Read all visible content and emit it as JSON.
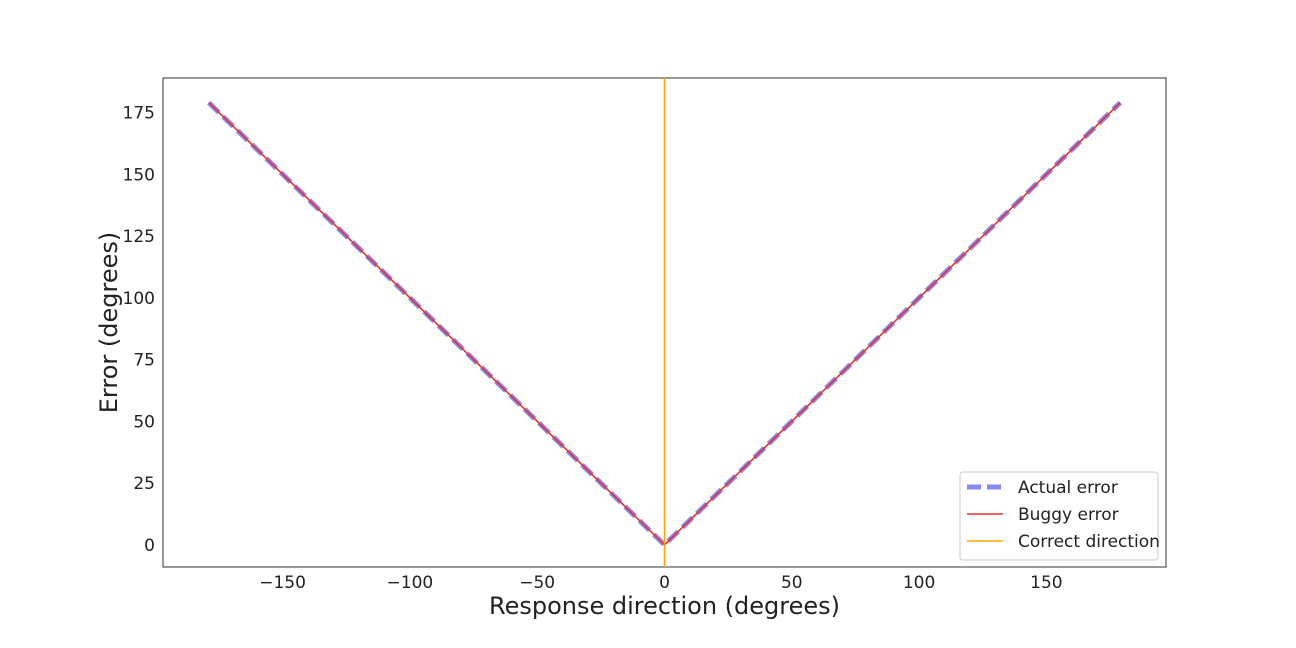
{
  "chart_data": {
    "type": "line",
    "title": "",
    "xlabel": "Response direction (degrees)",
    "ylabel": "Error (degrees)",
    "xlim": [
      -197,
      197
    ],
    "ylim": [
      -9,
      189
    ],
    "xticks": [
      -150,
      -100,
      -50,
      0,
      50,
      100,
      150
    ],
    "xtick_labels": [
      "−150",
      "−100",
      "−50",
      "0",
      "50",
      "100",
      "150"
    ],
    "yticks": [
      0,
      25,
      50,
      75,
      100,
      125,
      150,
      175
    ],
    "ytick_labels": [
      "0",
      "25",
      "50",
      "75",
      "100",
      "125",
      "150",
      "175"
    ],
    "grid": false,
    "legend_position": "lower-right",
    "series": [
      {
        "name": "Actual error",
        "style": "dashed",
        "color": "#7b7bf0",
        "x": [
          -179,
          0,
          179
        ],
        "y": [
          179,
          0,
          179
        ]
      },
      {
        "name": "Buggy error",
        "style": "solid",
        "color": "#e8312a",
        "x": [
          -179,
          0,
          179
        ],
        "y": [
          179,
          0,
          179
        ]
      },
      {
        "name": "Correct direction",
        "style": "vline",
        "color": "#ffa500",
        "x": [
          0,
          0
        ],
        "y": [
          -9,
          189
        ]
      }
    ]
  }
}
